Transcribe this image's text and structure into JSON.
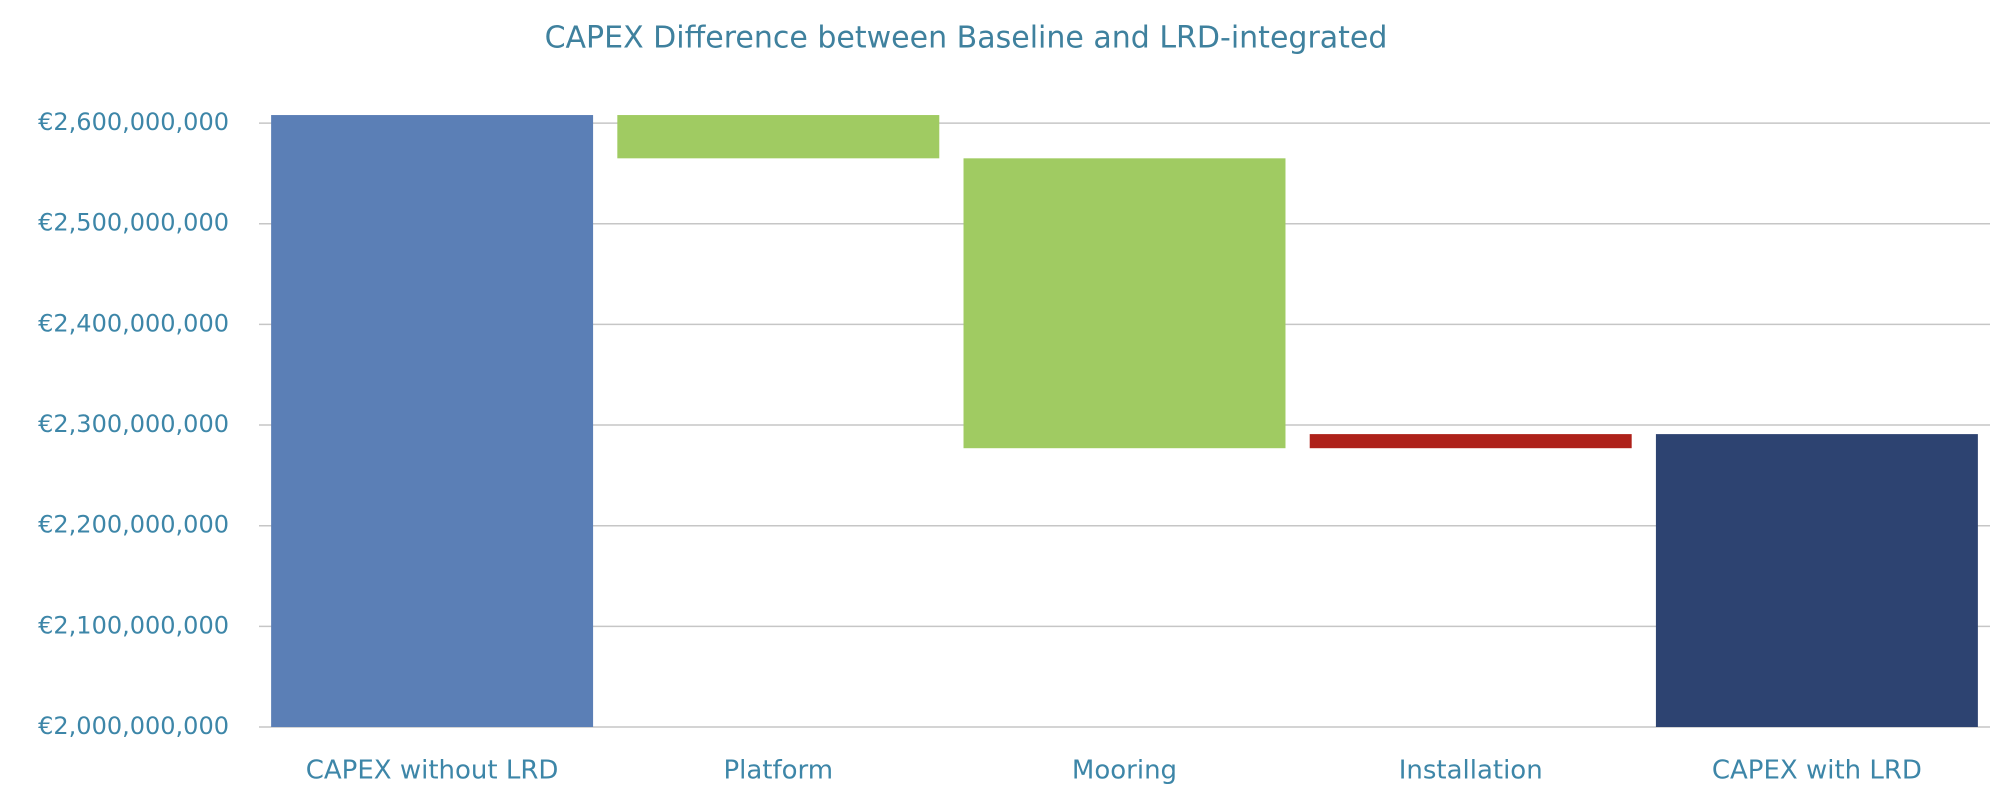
{
  "chart_data": {
    "type": "waterfall",
    "title": "CAPEX Difference between Baseline and LRD-integrated",
    "categories": [
      "CAPEX without LRD",
      "Platform",
      "Mooring",
      "Installation",
      "CAPEX with LRD"
    ],
    "values": [
      2608000000,
      -43000000,
      -288000000,
      14000000,
      2291000000
    ],
    "is_total": [
      true,
      false,
      false,
      false,
      true
    ],
    "colors": [
      "#5b7fb6",
      "#a0cb62",
      "#a0cb62",
      "#ae211a",
      "#2d4371"
    ],
    "ylim": [
      2000000000,
      2615000000
    ],
    "yticks": [
      {
        "value": 2000000000,
        "label": "€2,000,000,000"
      },
      {
        "value": 2100000000,
        "label": "€2,100,000,000"
      },
      {
        "value": 2200000000,
        "label": "€2,200,000,000"
      },
      {
        "value": 2300000000,
        "label": "€2,300,000,000"
      },
      {
        "value": 2400000000,
        "label": "€2,400,000,000"
      },
      {
        "value": 2500000000,
        "label": "€2,500,000,000"
      },
      {
        "value": 2600000000,
        "label": "€2,600,000,000"
      }
    ],
    "grid": true
  }
}
